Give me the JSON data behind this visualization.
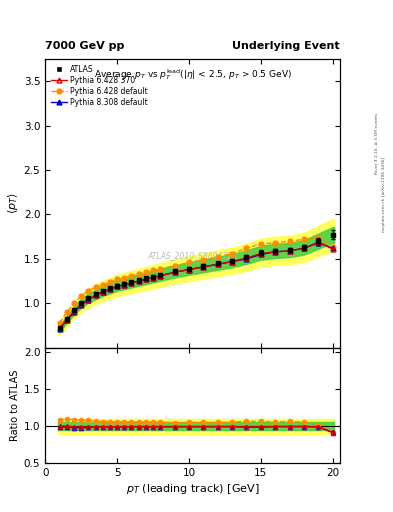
{
  "title_left": "7000 GeV pp",
  "title_right": "Underlying Event",
  "plot_title": "Average $p_T$ vs $p_T^{\\mathrm{lead}}$(|$\\eta$| < 2.5, $p_T$ > 0.5 GeV)",
  "ylabel_main": "$\\langle p_T \\rangle$",
  "ylabel_ratio": "Ratio to ATLAS",
  "xlabel": "$p_T$ (leading track) [GeV]",
  "watermark": "ATLAS_2010_S8894728",
  "right_label_top": "Rivet 3.1.10, ≥ 3.5M events",
  "right_label_bot": "mcplots.cern.ch [arXiv:1306.3436]",
  "xlim": [
    0,
    20.5
  ],
  "ylim_main": [
    0.5,
    3.75
  ],
  "ylim_ratio": [
    0.5,
    2.05
  ],
  "yticks_main": [
    1.0,
    1.5,
    2.0,
    2.5,
    3.0,
    3.5
  ],
  "yticks_ratio": [
    0.5,
    1.0,
    1.5,
    2.0
  ],
  "xticks": [
    0,
    5,
    10,
    15,
    20
  ],
  "pt_atlas": [
    1.0,
    1.5,
    2.0,
    2.5,
    3.0,
    3.5,
    4.0,
    4.5,
    5.0,
    5.5,
    6.0,
    6.5,
    7.0,
    7.5,
    8.0,
    9.0,
    10.0,
    11.0,
    12.0,
    13.0,
    14.0,
    15.0,
    16.0,
    17.0,
    18.0,
    19.0,
    20.0
  ],
  "avgpt_atlas": [
    0.72,
    0.82,
    0.92,
    1.0,
    1.06,
    1.1,
    1.14,
    1.17,
    1.2,
    1.22,
    1.24,
    1.26,
    1.28,
    1.3,
    1.32,
    1.36,
    1.39,
    1.42,
    1.45,
    1.48,
    1.52,
    1.57,
    1.59,
    1.6,
    1.63,
    1.7,
    1.77
  ],
  "err_atlas": [
    0.015,
    0.015,
    0.015,
    0.015,
    0.015,
    0.015,
    0.015,
    0.015,
    0.015,
    0.015,
    0.015,
    0.015,
    0.015,
    0.015,
    0.015,
    0.015,
    0.015,
    0.02,
    0.02,
    0.02,
    0.02,
    0.025,
    0.025,
    0.025,
    0.03,
    0.04,
    0.05
  ],
  "pt_p6_370": [
    1.0,
    1.5,
    2.0,
    2.5,
    3.0,
    3.5,
    4.0,
    4.5,
    5.0,
    5.5,
    6.0,
    6.5,
    7.0,
    7.5,
    8.0,
    9.0,
    10.0,
    11.0,
    12.0,
    13.0,
    14.0,
    15.0,
    16.0,
    17.0,
    18.0,
    19.0,
    20.0
  ],
  "avgpt_p6_370": [
    0.72,
    0.82,
    0.91,
    0.99,
    1.05,
    1.09,
    1.13,
    1.16,
    1.19,
    1.21,
    1.23,
    1.25,
    1.27,
    1.29,
    1.31,
    1.35,
    1.38,
    1.41,
    1.44,
    1.47,
    1.51,
    1.56,
    1.58,
    1.59,
    1.62,
    1.69,
    1.61
  ],
  "pt_p6_def": [
    1.0,
    1.5,
    2.0,
    2.5,
    3.0,
    3.5,
    4.0,
    4.5,
    5.0,
    5.5,
    6.0,
    6.5,
    7.0,
    7.5,
    8.0,
    9.0,
    10.0,
    11.0,
    12.0,
    13.0,
    14.0,
    15.0,
    16.0,
    17.0,
    18.0,
    19.0,
    20.0
  ],
  "avgpt_p6_def": [
    0.78,
    0.9,
    1.0,
    1.08,
    1.14,
    1.18,
    1.21,
    1.24,
    1.27,
    1.29,
    1.31,
    1.33,
    1.35,
    1.37,
    1.39,
    1.42,
    1.46,
    1.49,
    1.52,
    1.56,
    1.62,
    1.67,
    1.68,
    1.7,
    1.72,
    1.73,
    1.63
  ],
  "pt_p8_def": [
    1.0,
    1.5,
    2.0,
    2.5,
    3.0,
    3.5,
    4.0,
    4.5,
    5.0,
    5.5,
    6.0,
    6.5,
    7.0,
    7.5,
    8.0,
    9.0,
    10.0,
    11.0,
    12.0,
    13.0,
    14.0,
    15.0,
    16.0,
    17.0,
    18.0,
    19.0,
    20.0
  ],
  "avgpt_p8_def": [
    0.71,
    0.81,
    0.9,
    0.98,
    1.04,
    1.09,
    1.13,
    1.16,
    1.19,
    1.21,
    1.23,
    1.25,
    1.27,
    1.29,
    1.31,
    1.35,
    1.38,
    1.41,
    1.44,
    1.47,
    1.5,
    1.55,
    1.58,
    1.59,
    1.62,
    1.68,
    1.62
  ],
  "color_atlas": "#000000",
  "color_p6_370": "#dd0000",
  "color_p6_def": "#ff8c00",
  "color_p8_def": "#0000cc",
  "band_yellow": "#ffff44",
  "band_green": "#44cc44",
  "fig_bg": "#ffffff"
}
